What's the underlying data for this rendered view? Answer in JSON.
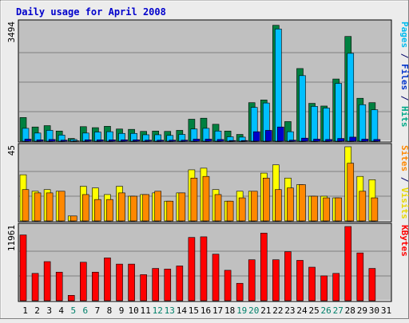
{
  "chart_data": [
    {
      "type": "bar",
      "title": "Daily usage for April 2008",
      "max_label": "3494",
      "ylim": [
        0,
        3494
      ],
      "grid": true,
      "side_label": [
        {
          "text": "Pages",
          "color": "#00bbee"
        },
        {
          "text": " / ",
          "color": "#000066"
        },
        {
          "text": "Files",
          "color": "#0033cc"
        },
        {
          "text": " / ",
          "color": "#000066"
        },
        {
          "text": "Hits",
          "color": "#00aa88"
        }
      ],
      "categories": [
        "1",
        "2",
        "3",
        "4",
        "5",
        "6",
        "7",
        "8",
        "9",
        "10",
        "11",
        "12",
        "13",
        "14",
        "15",
        "16",
        "17",
        "18",
        "19",
        "20",
        "21",
        "22",
        "23",
        "24",
        "25",
        "26",
        "27",
        "28",
        "29",
        "30",
        "31"
      ],
      "series": [
        {
          "name": "Hits",
          "color": "#008040",
          "values": [
            700,
            420,
            460,
            300,
            80,
            430,
            400,
            440,
            360,
            350,
            290,
            300,
            290,
            320,
            650,
            680,
            500,
            300,
            200,
            1140,
            1220,
            3430,
            580,
            2150,
            1120,
            1040,
            1840,
            3100,
            1270,
            1140,
            0
          ]
        },
        {
          "name": "Files",
          "color": "#00bfff",
          "values": [
            380,
            240,
            320,
            180,
            50,
            240,
            270,
            280,
            230,
            230,
            190,
            190,
            170,
            200,
            360,
            380,
            300,
            130,
            120,
            1000,
            1130,
            3320,
            280,
            1940,
            1030,
            980,
            1710,
            2600,
            1080,
            930,
            0
          ]
        },
        {
          "name": "Pages",
          "color": "#0000cc",
          "values": [
            60,
            40,
            50,
            30,
            10,
            40,
            40,
            40,
            40,
            40,
            30,
            30,
            30,
            30,
            60,
            60,
            50,
            20,
            20,
            280,
            320,
            420,
            30,
            90,
            60,
            50,
            80,
            120,
            60,
            50,
            0
          ]
        }
      ]
    },
    {
      "type": "bar",
      "max_label": "45",
      "ylim": [
        0,
        45
      ],
      "grid": true,
      "side_label": [
        {
          "text": "Sites",
          "color": "#ff8800"
        },
        {
          "text": " / ",
          "color": "#000066"
        },
        {
          "text": "Visits",
          "color": "#e8d800"
        }
      ],
      "categories": [
        "1",
        "2",
        "3",
        "4",
        "5",
        "6",
        "7",
        "8",
        "9",
        "10",
        "11",
        "12",
        "13",
        "14",
        "15",
        "16",
        "17",
        "18",
        "19",
        "20",
        "21",
        "22",
        "23",
        "24",
        "25",
        "26",
        "27",
        "28",
        "29",
        "30",
        "31"
      ],
      "series": [
        {
          "name": "Visits",
          "color": "#ffff00",
          "values": [
            28,
            18,
            19,
            18,
            3,
            21,
            20,
            16,
            21,
            15,
            16,
            17,
            12,
            17,
            31,
            32,
            19,
            12,
            18,
            18,
            29,
            34,
            26,
            22,
            15,
            15,
            14,
            46,
            27,
            25,
            0
          ]
        },
        {
          "name": "Sites",
          "color": "#ff8800",
          "values": [
            19,
            17,
            17,
            18,
            3,
            16,
            13,
            13,
            17,
            15,
            16,
            18,
            12,
            17,
            26,
            27,
            16,
            12,
            14,
            18,
            26,
            19,
            20,
            22,
            15,
            14,
            14,
            35,
            18,
            14,
            0
          ]
        }
      ]
    },
    {
      "type": "bar",
      "max_label": "11961",
      "ylim": [
        0,
        11961
      ],
      "grid": true,
      "side_label": [
        {
          "text": "KBytes",
          "color": "#ff0000"
        }
      ],
      "categories": [
        "1",
        "2",
        "3",
        "4",
        "5",
        "6",
        "7",
        "8",
        "9",
        "10",
        "11",
        "12",
        "13",
        "14",
        "15",
        "16",
        "17",
        "18",
        "19",
        "20",
        "21",
        "22",
        "23",
        "24",
        "25",
        "26",
        "27",
        "28",
        "29",
        "30",
        "31"
      ],
      "series": [
        {
          "name": "KBytes",
          "color": "#ff0000",
          "values": [
            10600,
            4400,
            6300,
            4600,
            860,
            6200,
            4600,
            6900,
            5900,
            5900,
            4200,
            5200,
            5100,
            5600,
            10200,
            10300,
            7500,
            4900,
            2800,
            6600,
            10900,
            6600,
            7900,
            6500,
            5400,
            4000,
            4400,
            12100,
            7700,
            5200,
            0
          ]
        }
      ]
    }
  ],
  "weekend_days": [
    5,
    6,
    12,
    13,
    19,
    20,
    26,
    27
  ],
  "colors": {
    "frame": "#ececec",
    "plot_bg": "#c0c0c0",
    "gridline": "#808080",
    "title": "#0000cc",
    "weekday_label": "#000000",
    "weekend_label": "#00806a"
  }
}
